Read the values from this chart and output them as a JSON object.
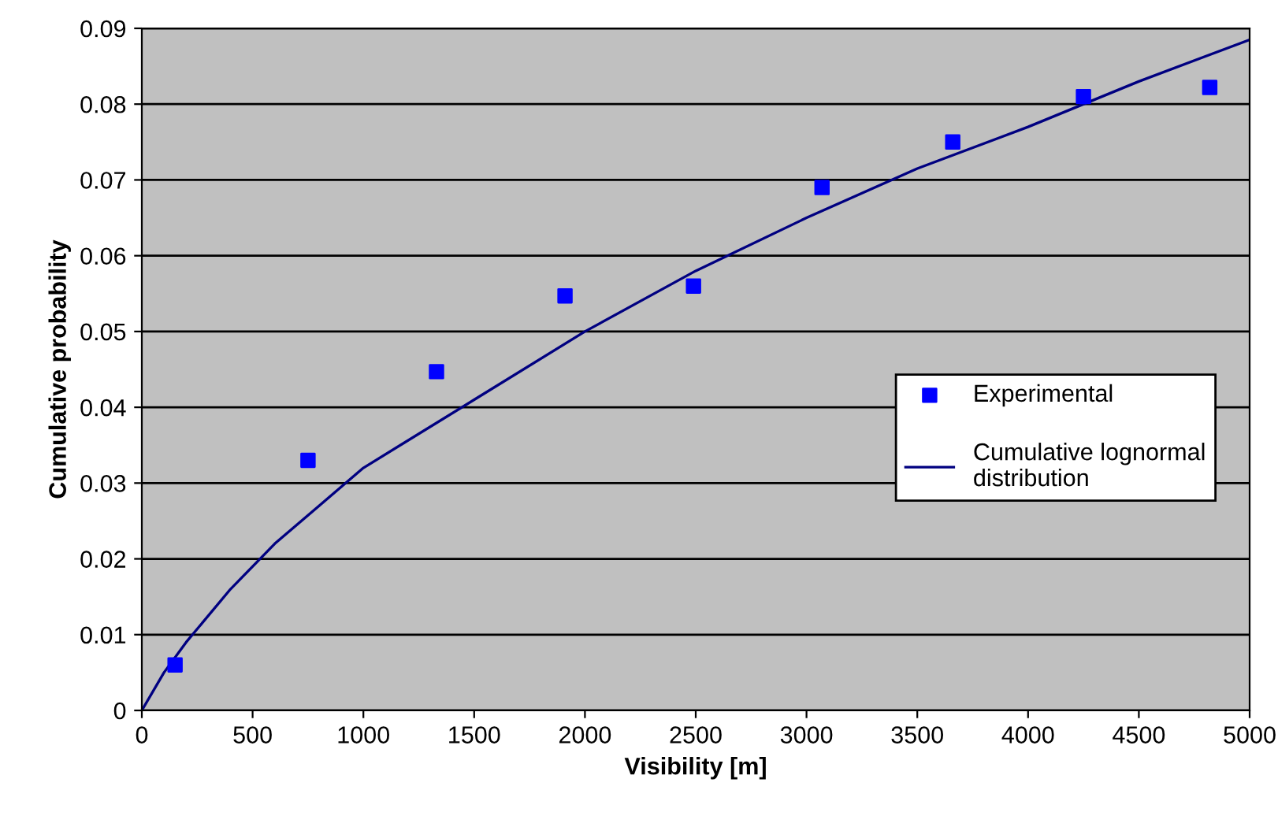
{
  "chart_data": {
    "type": "scatter",
    "xlabel": "Visibility [m]",
    "ylabel": "Cumulative probability",
    "xlim": [
      0,
      5000
    ],
    "xticks": [
      0,
      500,
      1000,
      1500,
      2000,
      2500,
      3000,
      3500,
      4000,
      4500,
      5000
    ],
    "ylim": [
      0,
      0.09
    ],
    "yticks": [
      0,
      0.01,
      0.02,
      0.03,
      0.04,
      0.05,
      0.06,
      0.07,
      0.08,
      0.09
    ],
    "grid": "y",
    "legend": "right",
    "series": [
      {
        "name": "Experimental",
        "marker": "square",
        "color": "#0000ff",
        "x": [
          150,
          750,
          1330,
          1910,
          2490,
          3070,
          3660,
          4250,
          4820
        ],
        "values": [
          0.006,
          0.033,
          0.0447,
          0.0547,
          0.056,
          0.069,
          0.075,
          0.081,
          0.0822
        ]
      },
      {
        "name": "Cumulative lognormal\ndistribution",
        "type": "line",
        "marker": "none",
        "line_style": "solid",
        "color": "#000080",
        "x": [
          0,
          100,
          200,
          400,
          600,
          800,
          1000,
          1500,
          2000,
          2500,
          3000,
          3500,
          4000,
          4500,
          5000
        ],
        "values": [
          0,
          0.005,
          0.009,
          0.016,
          0.022,
          0.027,
          0.032,
          0.041,
          0.05,
          0.058,
          0.065,
          0.0715,
          0.077,
          0.083,
          0.0885
        ]
      }
    ]
  }
}
